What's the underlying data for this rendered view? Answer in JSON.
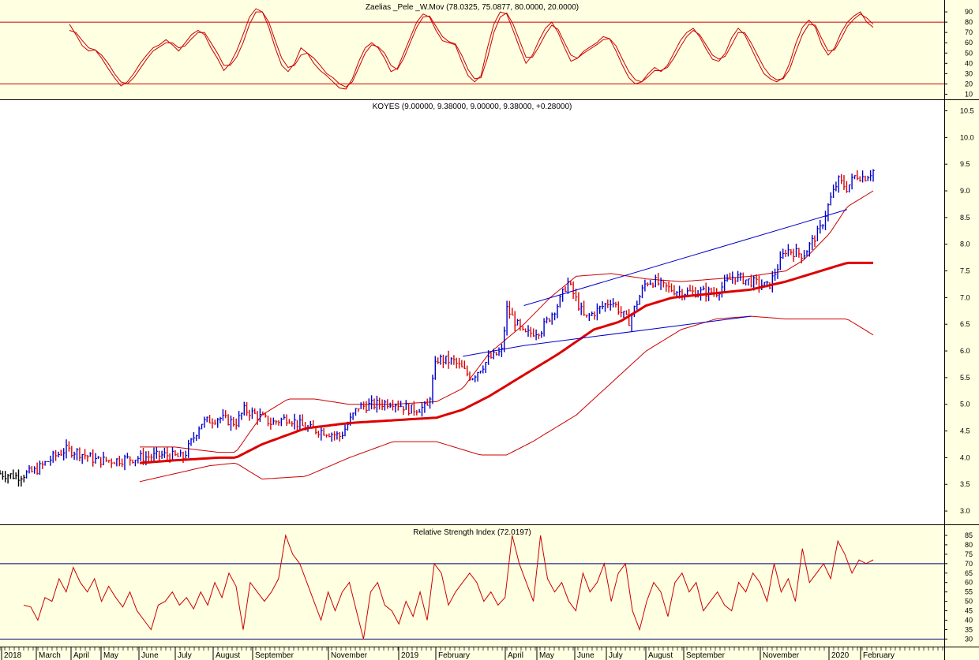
{
  "colors": {
    "panel_bg_yellow": "#ffffe1",
    "panel_bg_white": "#ffffff",
    "up_bars": "#0000cc",
    "down_bars": "#dd0000",
    "neutral_bars": "#000000",
    "osc_line": "#cc0000",
    "guide_red": "#cc0000",
    "guide_blue": "#000080",
    "trend_blue": "#0000cc",
    "ma_red": "#dd0000"
  },
  "chart_data": [
    {
      "type": "line",
      "title": "Zaelias _Pele _W.Mov (78.0325, 75.0877, 80.0000, 20.0000)",
      "xlabel": "",
      "ylabel": "",
      "ylim": [
        5,
        100
      ],
      "yticks": [
        10,
        20,
        30,
        40,
        50,
        60,
        70,
        80,
        90
      ],
      "guides": [
        80,
        20
      ],
      "series": [
        {
          "values": [
            78,
            68,
            57,
            52,
            53,
            45,
            35,
            26,
            18,
            22,
            30,
            40,
            48,
            55,
            58,
            63,
            58,
            52,
            60,
            68,
            72,
            68,
            55,
            45,
            33,
            40,
            52,
            68,
            85,
            93,
            90,
            75,
            55,
            38,
            32,
            40,
            55,
            50,
            40,
            33,
            28,
            22,
            16,
            15,
            25,
            42,
            55,
            60,
            55,
            45,
            32,
            35,
            50,
            65,
            80,
            88,
            85,
            72,
            62,
            60,
            58,
            42,
            28,
            22,
            28,
            55,
            78,
            90,
            88,
            72,
            55,
            40,
            48,
            62,
            74,
            80,
            70,
            55,
            42,
            45,
            52,
            56,
            60,
            66,
            64,
            52,
            38,
            26,
            20,
            22,
            30,
            36,
            32,
            38,
            50,
            62,
            70,
            74,
            66,
            54,
            44,
            42,
            50,
            65,
            74,
            68,
            55,
            42,
            30,
            25,
            22,
            26,
            40,
            60,
            75,
            82,
            75,
            58,
            48,
            55,
            70,
            80,
            86,
            90,
            80,
            75
          ]
        },
        {
          "values": [
            72,
            70,
            62,
            55,
            53,
            48,
            40,
            30,
            22,
            20,
            26,
            35,
            44,
            52,
            56,
            60,
            60,
            55,
            57,
            64,
            70,
            70,
            60,
            50,
            38,
            38,
            46,
            60,
            78,
            90,
            90,
            80,
            62,
            45,
            36,
            38,
            48,
            50,
            45,
            38,
            30,
            26,
            20,
            17,
            22,
            36,
            50,
            58,
            56,
            50,
            38,
            34,
            45,
            60,
            75,
            85,
            86,
            76,
            66,
            61,
            59,
            48,
            34,
            25,
            26,
            45,
            70,
            85,
            89,
            78,
            62,
            46,
            46,
            56,
            68,
            77,
            73,
            60,
            48,
            45,
            50,
            54,
            58,
            63,
            64,
            57,
            44,
            32,
            24,
            22,
            27,
            33,
            33,
            36,
            45,
            56,
            66,
            72,
            68,
            58,
            48,
            44,
            47,
            58,
            70,
            70,
            60,
            48,
            36,
            28,
            24,
            25,
            34,
            52,
            68,
            78,
            77,
            64,
            52,
            53,
            64,
            76,
            83,
            88,
            84,
            78
          ]
        }
      ]
    },
    {
      "type": "bar",
      "title": "KOYES (9.00000, 9.38000, 9.00000, 9.38000, +0.28000)",
      "xlabel": "",
      "ylabel": "",
      "ylim": [
        2.75,
        10.7
      ],
      "yticks": [
        "3.0",
        "3.5",
        "4.0",
        "4.5",
        "5.0",
        "5.5",
        "6.0",
        "6.5",
        "7.0",
        "7.5",
        "8.0",
        "8.5",
        "9.0",
        "9.5",
        "10.0",
        "10.5"
      ],
      "x": [
        "2018",
        "March",
        "April",
        "May",
        "June",
        "July",
        "August",
        "September",
        "November",
        "2019",
        "February",
        "April",
        "May",
        "June",
        "July",
        "August",
        "September",
        "November",
        "2020",
        "February"
      ],
      "price_anchors": {
        "t": [
          0,
          0.02,
          0.04,
          0.06,
          0.075,
          0.09,
          0.11,
          0.13,
          0.16,
          0.19,
          0.21,
          0.23,
          0.25,
          0.27,
          0.28,
          0.3,
          0.31,
          0.33,
          0.35,
          0.37,
          0.39,
          0.41,
          0.43,
          0.45,
          0.47,
          0.49,
          0.5,
          0.52,
          0.54,
          0.56,
          0.575,
          0.58,
          0.6,
          0.62,
          0.64,
          0.65,
          0.66,
          0.67,
          0.7,
          0.72,
          0.74,
          0.75,
          0.76,
          0.78,
          0.8,
          0.82,
          0.84,
          0.86,
          0.88,
          0.9,
          0.92,
          0.94,
          0.95,
          0.96,
          0.97,
          0.98,
          0.99,
          1.0
        ],
        "close": [
          3.7,
          3.65,
          3.75,
          4.0,
          4.15,
          4.1,
          3.95,
          3.95,
          4.0,
          4.05,
          4.0,
          4.65,
          4.75,
          4.65,
          4.9,
          4.75,
          4.65,
          4.75,
          4.55,
          4.5,
          4.4,
          4.95,
          5.0,
          5.05,
          4.9,
          4.95,
          5.85,
          5.8,
          5.5,
          5.85,
          6.0,
          6.8,
          6.3,
          6.4,
          6.9,
          7.3,
          6.95,
          6.6,
          6.95,
          6.55,
          7.3,
          7.3,
          7.2,
          7.1,
          7.1,
          7.1,
          7.4,
          7.3,
          7.2,
          7.9,
          7.8,
          8.3,
          8.8,
          9.2,
          9.05,
          9.3,
          9.25,
          9.38
        ]
      },
      "ma_anchors": {
        "t": [
          0.16,
          0.2,
          0.25,
          0.27,
          0.3,
          0.35,
          0.4,
          0.45,
          0.5,
          0.53,
          0.56,
          0.6,
          0.64,
          0.68,
          0.71,
          0.74,
          0.77,
          0.8,
          0.83,
          0.86,
          0.9,
          0.94,
          0.97,
          1.0
        ],
        "v": [
          3.9,
          3.95,
          4.0,
          4.0,
          4.25,
          4.55,
          4.65,
          4.7,
          4.75,
          4.9,
          5.15,
          5.55,
          5.95,
          6.4,
          6.55,
          6.85,
          7.0,
          7.05,
          7.1,
          7.15,
          7.3,
          7.5,
          7.65,
          7.65
        ]
      },
      "band_upper": {
        "t": [
          0.16,
          0.2,
          0.25,
          0.27,
          0.3,
          0.33,
          0.36,
          0.4,
          0.45,
          0.5,
          0.53,
          0.56,
          0.6,
          0.63,
          0.66,
          0.7,
          0.74,
          0.78,
          0.82,
          0.86,
          0.9,
          0.92,
          0.95,
          0.97,
          1.0
        ],
        "v": [
          4.2,
          4.2,
          4.1,
          4.1,
          4.8,
          5.1,
          5.1,
          5.0,
          5.0,
          5.05,
          5.3,
          5.95,
          6.5,
          7.0,
          7.4,
          7.45,
          7.35,
          7.3,
          7.35,
          7.4,
          7.5,
          7.7,
          8.2,
          8.7,
          9.0
        ]
      },
      "band_lower": {
        "t": [
          0.16,
          0.2,
          0.24,
          0.27,
          0.3,
          0.35,
          0.4,
          0.45,
          0.5,
          0.55,
          0.58,
          0.61,
          0.64,
          0.66,
          0.7,
          0.74,
          0.78,
          0.82,
          0.86,
          0.9,
          0.94,
          0.97,
          1.0
        ],
        "v": [
          3.55,
          3.7,
          3.85,
          3.9,
          3.6,
          3.65,
          4.0,
          4.3,
          4.3,
          4.05,
          4.05,
          4.3,
          4.6,
          4.8,
          5.4,
          6.0,
          6.4,
          6.6,
          6.65,
          6.6,
          6.6,
          6.6,
          6.3
        ]
      },
      "trendlines": [
        {
          "t1": 0.6,
          "v1": 6.85,
          "t2": 0.97,
          "v2": 8.65
        },
        {
          "t1": 0.6,
          "v1": 6.1,
          "t2": 0.86,
          "v2": 6.65
        },
        {
          "t1": 0.53,
          "v1": 5.9,
          "t2": 0.6,
          "v2": 6.1
        }
      ]
    },
    {
      "type": "line",
      "title": "Relative Strength Index (72.0197)",
      "xlabel": "",
      "ylabel": "",
      "ylim": [
        26,
        90
      ],
      "yticks": [
        30,
        35,
        40,
        45,
        50,
        55,
        60,
        65,
        70,
        75,
        80,
        85
      ],
      "guides": [
        70,
        30
      ],
      "series": [
        {
          "values": [
            48,
            47,
            40,
            52,
            50,
            62,
            55,
            68,
            60,
            55,
            62,
            50,
            58,
            52,
            47,
            55,
            45,
            40,
            35,
            48,
            50,
            55,
            48,
            52,
            46,
            55,
            48,
            60,
            52,
            65,
            58,
            35,
            60,
            55,
            50,
            55,
            62,
            85,
            75,
            70,
            60,
            50,
            40,
            55,
            45,
            55,
            60,
            45,
            30,
            55,
            60,
            48,
            45,
            38,
            50,
            42,
            55,
            40,
            70,
            65,
            48,
            55,
            60,
            65,
            60,
            50,
            55,
            48,
            52,
            85,
            70,
            60,
            50,
            85,
            62,
            55,
            60,
            50,
            45,
            65,
            55,
            60,
            70,
            50,
            65,
            70,
            45,
            35,
            50,
            60,
            55,
            42,
            60,
            65,
            55,
            60,
            45,
            50,
            55,
            48,
            45,
            60,
            55,
            65,
            60,
            50,
            70,
            55,
            62,
            50,
            78,
            60,
            65,
            70,
            62,
            82,
            75,
            65,
            72,
            70,
            72
          ]
        }
      ]
    }
  ],
  "status_text": ""
}
